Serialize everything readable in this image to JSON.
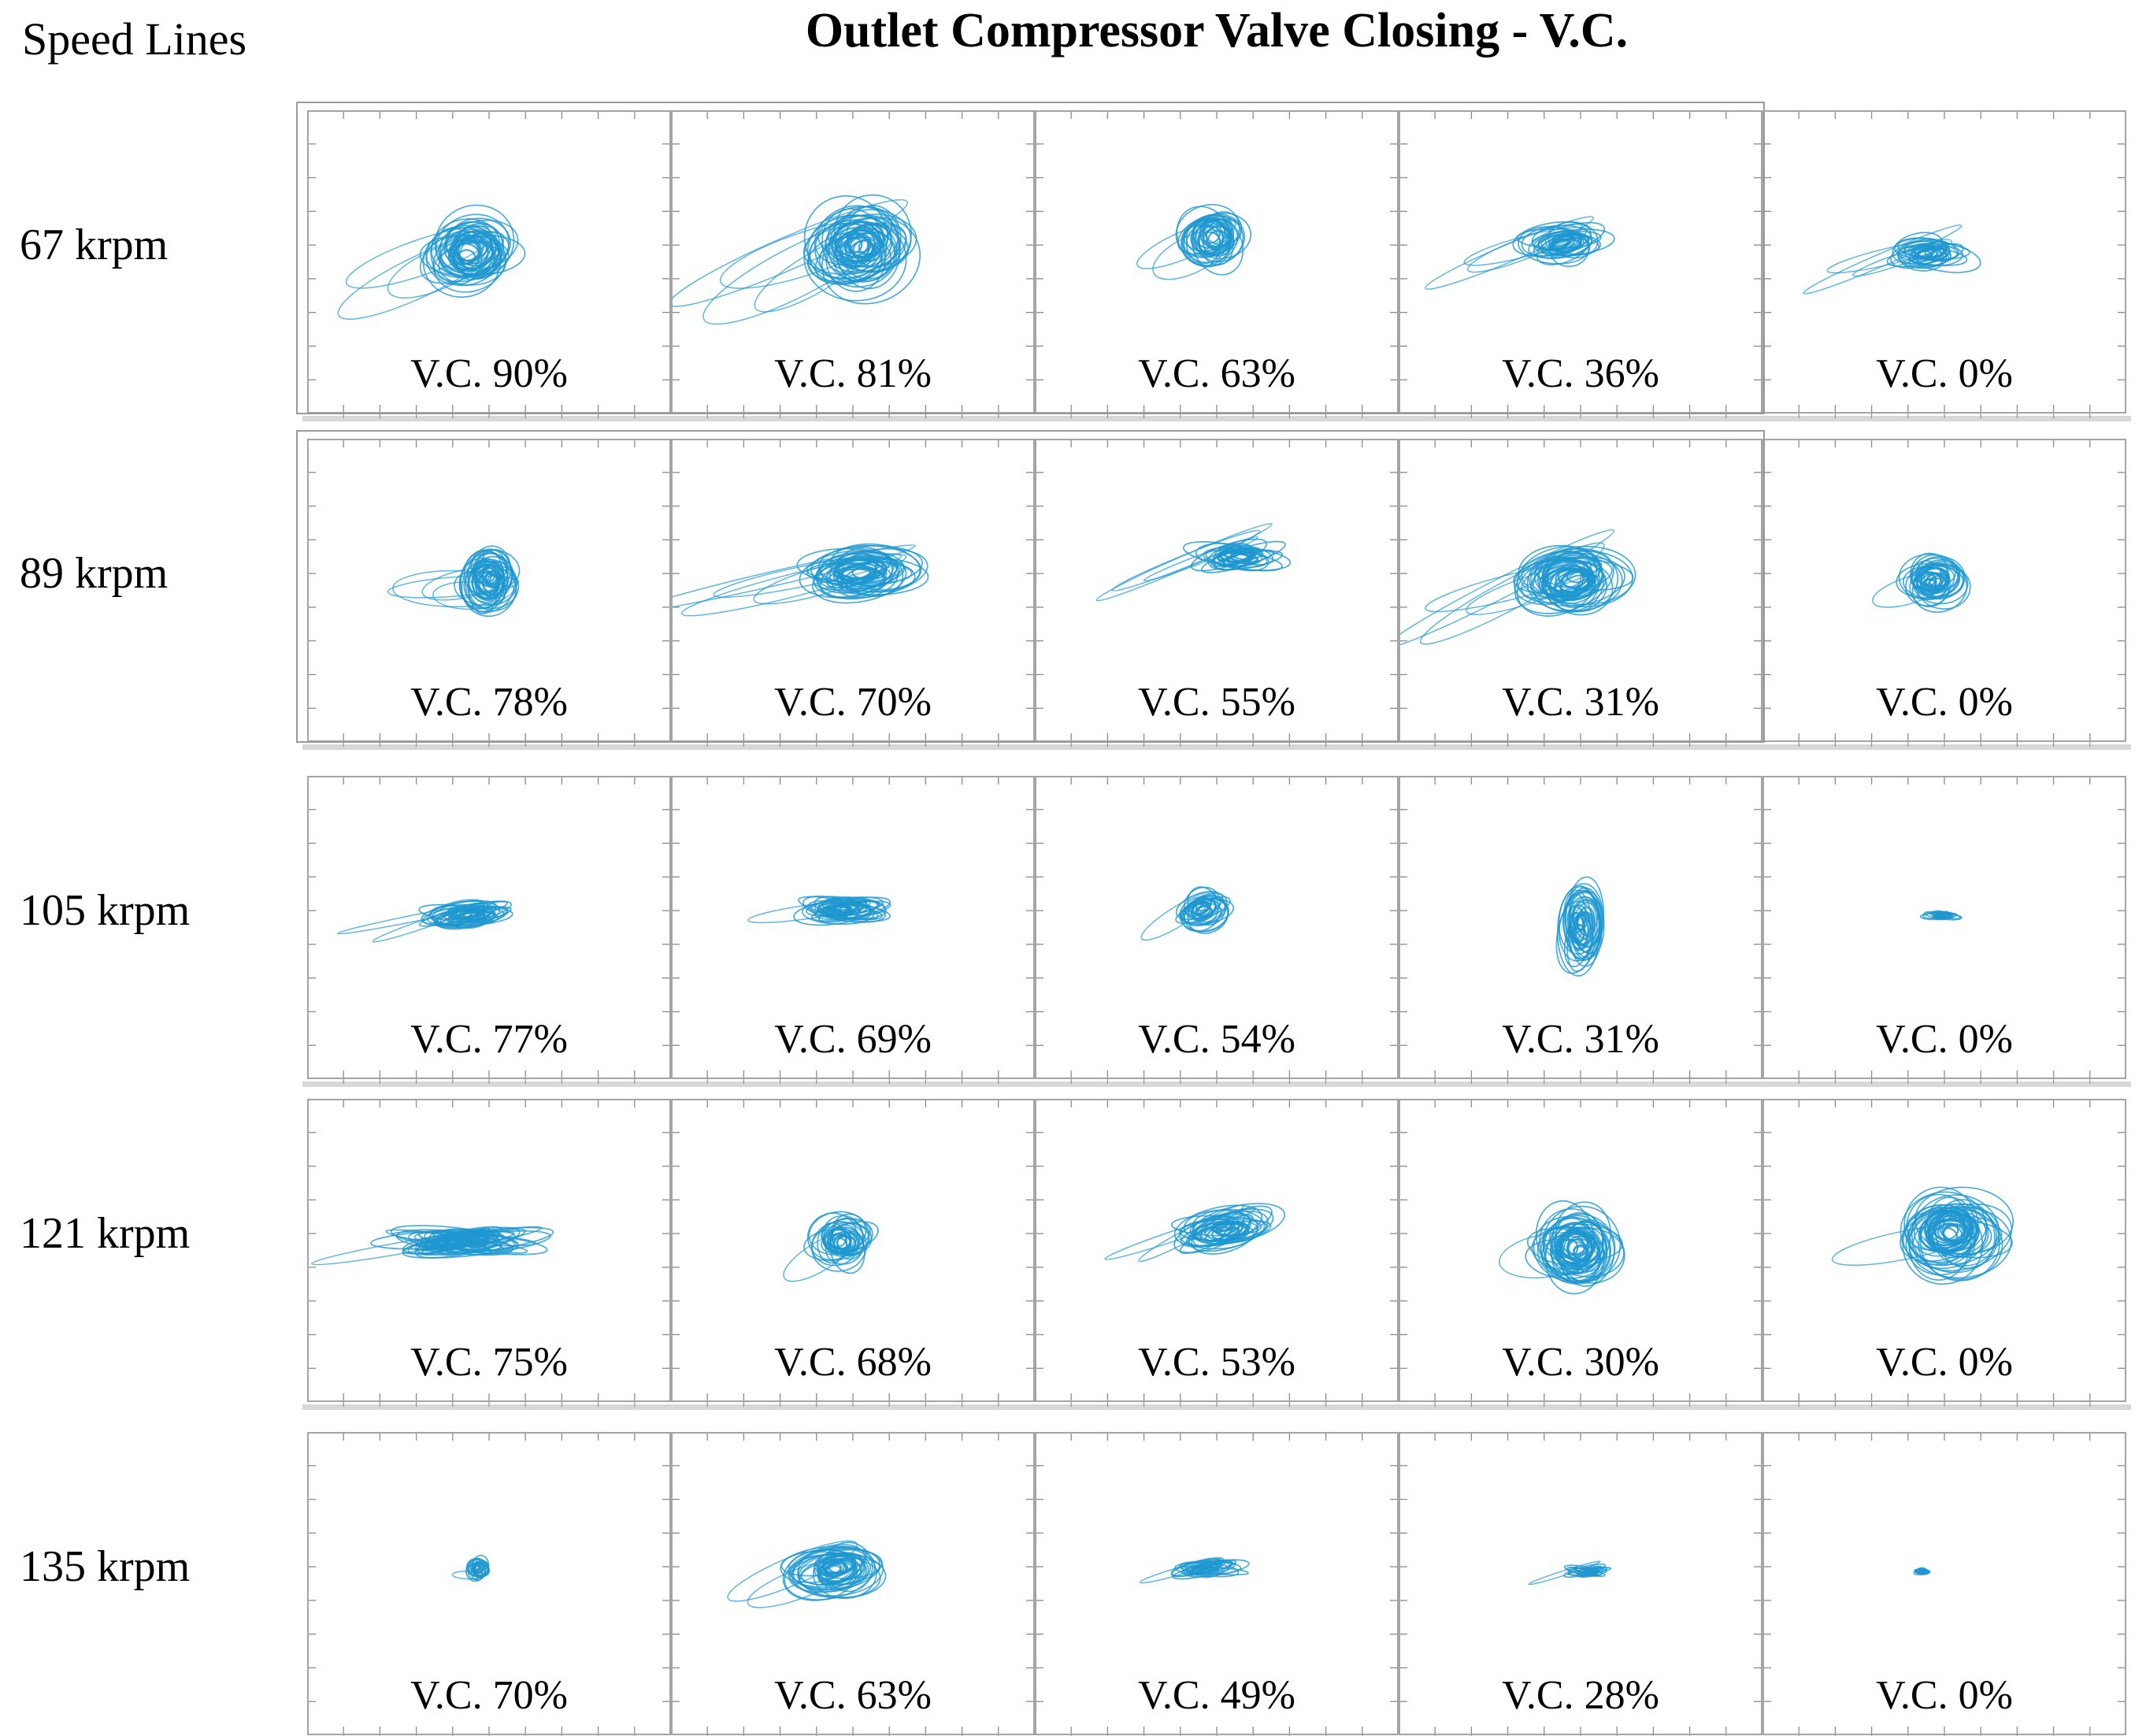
{
  "header": {
    "speed_lines_label": "Speed Lines",
    "title": "Outlet Compressor Valve Closing - V.C."
  },
  "colors": {
    "orbit": "#1e97d0",
    "frame": "#9a9a9a",
    "tick": "#8a8a8a",
    "shadow_band": "#d8d8d8",
    "text": "#000000"
  },
  "chart_data": {
    "type": "scatter",
    "subtype": "shaft-orbit-grid",
    "title": "Outlet Compressor Valve Closing - V.C.",
    "rows_axis_label": "Speed Lines",
    "grid_size": {
      "rows": 5,
      "cols": 5
    },
    "axes_labeled": false,
    "notes": "5x5 grid of rotor shaft orbit plots; rows are rotor speed lines, columns are decreasing outlet compressor valve closing percentage (V.C.). Each subplot shows superimposed blue orbit loops; frames carry unlabeled tick marks. Orbit geometry values are fractions of each subplot cell estimated from the figure.",
    "rows": [
      {
        "speed_label": "67 krpm",
        "speed_krpm": 67,
        "cells": [
          {
            "label": "V.C. 90%",
            "vc_percent": 90,
            "orbit": {
              "cx": 0.45,
              "cy": 0.47,
              "rx": 0.115,
              "ry": 0.115,
              "rot": -12,
              "loops": 22,
              "tails": 3,
              "seed": 101
            }
          },
          {
            "label": "V.C. 81%",
            "vc_percent": 81,
            "orbit": {
              "cx": 0.52,
              "cy": 0.45,
              "rx": 0.13,
              "ry": 0.13,
              "rot": -10,
              "loops": 26,
              "tails": 4,
              "seed": 102
            }
          },
          {
            "label": "V.C. 63%",
            "vc_percent": 63,
            "orbit": {
              "cx": 0.49,
              "cy": 0.42,
              "rx": 0.085,
              "ry": 0.095,
              "rot": -15,
              "loops": 16,
              "tails": 2,
              "seed": 103
            }
          },
          {
            "label": "V.C. 36%",
            "vc_percent": 36,
            "orbit": {
              "cx": 0.45,
              "cy": 0.44,
              "rx": 0.105,
              "ry": 0.055,
              "rot": -8,
              "loops": 16,
              "tails": 3,
              "seed": 104
            }
          },
          {
            "label": "V.C. 0%",
            "vc_percent": 0,
            "orbit": {
              "cx": 0.46,
              "cy": 0.47,
              "rx": 0.1,
              "ry": 0.045,
              "rot": -3,
              "loops": 14,
              "tails": 3,
              "seed": 105
            }
          }
        ]
      },
      {
        "speed_label": "89 krpm",
        "speed_krpm": 89,
        "cells": [
          {
            "label": "V.C. 78%",
            "vc_percent": 78,
            "orbit": {
              "cx": 0.5,
              "cy": 0.46,
              "rx": 0.07,
              "ry": 0.1,
              "rot": 8,
              "loops": 20,
              "tails": 4,
              "seed": 201
            }
          },
          {
            "label": "V.C. 70%",
            "vc_percent": 70,
            "orbit": {
              "cx": 0.52,
              "cy": 0.44,
              "rx": 0.15,
              "ry": 0.07,
              "rot": -4,
              "loops": 20,
              "tails": 4,
              "seed": 202
            }
          },
          {
            "label": "V.C. 55%",
            "vc_percent": 55,
            "orbit": {
              "cx": 0.55,
              "cy": 0.39,
              "rx": 0.11,
              "ry": 0.035,
              "rot": -4,
              "loops": 14,
              "tails": 3,
              "seed": 203
            }
          },
          {
            "label": "V.C. 31%",
            "vc_percent": 31,
            "orbit": {
              "cx": 0.47,
              "cy": 0.47,
              "rx": 0.13,
              "ry": 0.095,
              "rot": -8,
              "loops": 24,
              "tails": 4,
              "seed": 204
            }
          },
          {
            "label": "V.C. 0%",
            "vc_percent": 0,
            "orbit": {
              "cx": 0.47,
              "cy": 0.47,
              "rx": 0.08,
              "ry": 0.07,
              "rot": -5,
              "loops": 18,
              "tails": 1,
              "seed": 205
            }
          }
        ]
      },
      {
        "speed_label": "105 krpm",
        "speed_krpm": 105,
        "cells": [
          {
            "label": "V.C. 77%",
            "vc_percent": 77,
            "orbit": {
              "cx": 0.44,
              "cy": 0.46,
              "rx": 0.115,
              "ry": 0.035,
              "rot": -3,
              "loops": 18,
              "tails": 2,
              "seed": 301
            }
          },
          {
            "label": "V.C. 69%",
            "vc_percent": 69,
            "orbit": {
              "cx": 0.47,
              "cy": 0.44,
              "rx": 0.11,
              "ry": 0.035,
              "rot": -2,
              "loops": 18,
              "tails": 1,
              "seed": 302
            }
          },
          {
            "label": "V.C. 54%",
            "vc_percent": 54,
            "orbit": {
              "cx": 0.46,
              "cy": 0.44,
              "rx": 0.075,
              "ry": 0.055,
              "rot": -20,
              "loops": 14,
              "tails": 1,
              "seed": 303
            }
          },
          {
            "label": "V.C. 31%",
            "vc_percent": 31,
            "orbit": {
              "cx": 0.5,
              "cy": 0.5,
              "rx": 0.055,
              "ry": 0.135,
              "rot": 4,
              "loops": 18,
              "tails": 0,
              "seed": 304
            }
          },
          {
            "label": "V.C. 0%",
            "vc_percent": 0,
            "orbit": {
              "cx": 0.49,
              "cy": 0.46,
              "rx": 0.048,
              "ry": 0.012,
              "rot": 0,
              "loops": 8,
              "tails": 0,
              "seed": 305
            }
          }
        ]
      },
      {
        "speed_label": "121 krpm",
        "speed_krpm": 121,
        "cells": [
          {
            "label": "V.C. 75%",
            "vc_percent": 75,
            "orbit": {
              "cx": 0.42,
              "cy": 0.47,
              "rx": 0.19,
              "ry": 0.033,
              "rot": -2,
              "loops": 22,
              "tails": 1,
              "seed": 401
            }
          },
          {
            "label": "V.C. 68%",
            "vc_percent": 68,
            "orbit": {
              "cx": 0.47,
              "cy": 0.47,
              "rx": 0.08,
              "ry": 0.08,
              "rot": -10,
              "loops": 16,
              "tails": 1,
              "seed": 402
            }
          },
          {
            "label": "V.C. 53%",
            "vc_percent": 53,
            "orbit": {
              "cx": 0.52,
              "cy": 0.43,
              "rx": 0.12,
              "ry": 0.055,
              "rot": -12,
              "loops": 18,
              "tails": 2,
              "seed": 403
            }
          },
          {
            "label": "V.C. 30%",
            "vc_percent": 30,
            "orbit": {
              "cx": 0.485,
              "cy": 0.49,
              "rx": 0.1,
              "ry": 0.115,
              "rot": 5,
              "loops": 26,
              "tails": 1,
              "seed": 404
            }
          },
          {
            "label": "V.C. 0%",
            "vc_percent": 0,
            "orbit": {
              "cx": 0.52,
              "cy": 0.44,
              "rx": 0.13,
              "ry": 0.12,
              "rot": -5,
              "loops": 26,
              "tails": 1,
              "seed": 405
            }
          }
        ]
      },
      {
        "speed_label": "135 krpm",
        "speed_krpm": 135,
        "cells": [
          {
            "label": "V.C. 70%",
            "vc_percent": 70,
            "orbit": {
              "cx": 0.47,
              "cy": 0.45,
              "rx": 0.028,
              "ry": 0.035,
              "rot": 15,
              "loops": 10,
              "tails": 1,
              "seed": 501
            }
          },
          {
            "label": "V.C. 63%",
            "vc_percent": 63,
            "orbit": {
              "cx": 0.45,
              "cy": 0.45,
              "rx": 0.115,
              "ry": 0.075,
              "rot": -8,
              "loops": 20,
              "tails": 2,
              "seed": 502
            }
          },
          {
            "label": "V.C. 49%",
            "vc_percent": 49,
            "orbit": {
              "cx": 0.47,
              "cy": 0.45,
              "rx": 0.085,
              "ry": 0.022,
              "rot": -6,
              "loops": 12,
              "tails": 1,
              "seed": 503
            }
          },
          {
            "label": "V.C. 28%",
            "vc_percent": 28,
            "orbit": {
              "cx": 0.52,
              "cy": 0.46,
              "rx": 0.065,
              "ry": 0.013,
              "rot": -3,
              "loops": 8,
              "tails": 1,
              "seed": 504
            }
          },
          {
            "label": "V.C. 0%",
            "vc_percent": 0,
            "orbit": {
              "cx": 0.44,
              "cy": 0.46,
              "rx": 0.025,
              "ry": 0.009,
              "rot": 0,
              "loops": 6,
              "tails": 0,
              "seed": 505
            }
          }
        ]
      }
    ]
  }
}
